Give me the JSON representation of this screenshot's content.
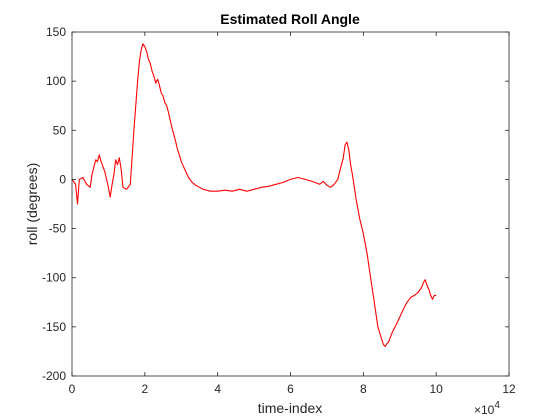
{
  "chart_data": {
    "type": "line",
    "title": "Estimated Roll Angle",
    "xlabel": "time-index",
    "ylabel": "roll (degrees)",
    "x_multiplier_label": "×10",
    "x_multiplier_exponent": "4",
    "xlim": [
      0,
      12
    ],
    "ylim": [
      -200,
      150
    ],
    "xticks": [
      0,
      2,
      4,
      6,
      8,
      10,
      12
    ],
    "yticks": [
      -200,
      -150,
      -100,
      -50,
      0,
      50,
      100,
      150
    ],
    "grid": false,
    "line_color": "#ff0000",
    "x": [
      0,
      0.1,
      0.15,
      0.2,
      0.3,
      0.4,
      0.5,
      0.55,
      0.6,
      0.65,
      0.7,
      0.75,
      0.8,
      0.9,
      1.0,
      1.05,
      1.1,
      1.15,
      1.2,
      1.25,
      1.3,
      1.35,
      1.4,
      1.5,
      1.6,
      1.7,
      1.8,
      1.85,
      1.9,
      1.95,
      2.0,
      2.05,
      2.1,
      2.15,
      2.2,
      2.25,
      2.3,
      2.35,
      2.4,
      2.45,
      2.5,
      2.55,
      2.6,
      2.65,
      2.7,
      2.75,
      2.8,
      2.85,
      2.9,
      2.95,
      3.0,
      3.1,
      3.2,
      3.3,
      3.4,
      3.5,
      3.6,
      3.7,
      3.8,
      3.9,
      4.0,
      4.2,
      4.4,
      4.6,
      4.8,
      5.0,
      5.2,
      5.4,
      5.6,
      5.8,
      6.0,
      6.2,
      6.4,
      6.6,
      6.8,
      6.9,
      7.0,
      7.1,
      7.2,
      7.3,
      7.35,
      7.4,
      7.45,
      7.5,
      7.55,
      7.6,
      7.65,
      7.7,
      7.8,
      7.9,
      8.0,
      8.1,
      8.2,
      8.3,
      8.4,
      8.5,
      8.55,
      8.6,
      8.65,
      8.7,
      8.75,
      8.8,
      8.9,
      9.0,
      9.1,
      9.2,
      9.3,
      9.4,
      9.5,
      9.6,
      9.65,
      9.7,
      9.75,
      9.8,
      9.85,
      9.9,
      9.95,
      10.0
    ],
    "y": [
      0,
      -5,
      -25,
      0,
      2,
      -5,
      -8,
      5,
      12,
      20,
      18,
      25,
      18,
      8,
      -8,
      -18,
      -5,
      5,
      20,
      15,
      22,
      10,
      -8,
      -10,
      -5,
      50,
      100,
      120,
      132,
      138,
      135,
      130,
      122,
      118,
      110,
      105,
      98,
      102,
      96,
      88,
      85,
      78,
      75,
      68,
      60,
      52,
      45,
      38,
      30,
      25,
      18,
      10,
      2,
      -3,
      -6,
      -8,
      -10,
      -11,
      -12,
      -12,
      -12,
      -11,
      -12,
      -10,
      -12,
      -10,
      -8,
      -7,
      -5,
      -3,
      0,
      2,
      0,
      -2,
      -5,
      -2,
      -6,
      -8,
      -5,
      0,
      8,
      15,
      22,
      35,
      38,
      30,
      15,
      5,
      -20,
      -40,
      -55,
      -75,
      -100,
      -125,
      -150,
      -162,
      -168,
      -170,
      -167,
      -165,
      -160,
      -155,
      -148,
      -140,
      -132,
      -125,
      -120,
      -118,
      -115,
      -110,
      -105,
      -102,
      -108,
      -112,
      -118,
      -122,
      -118,
      -118
    ]
  }
}
